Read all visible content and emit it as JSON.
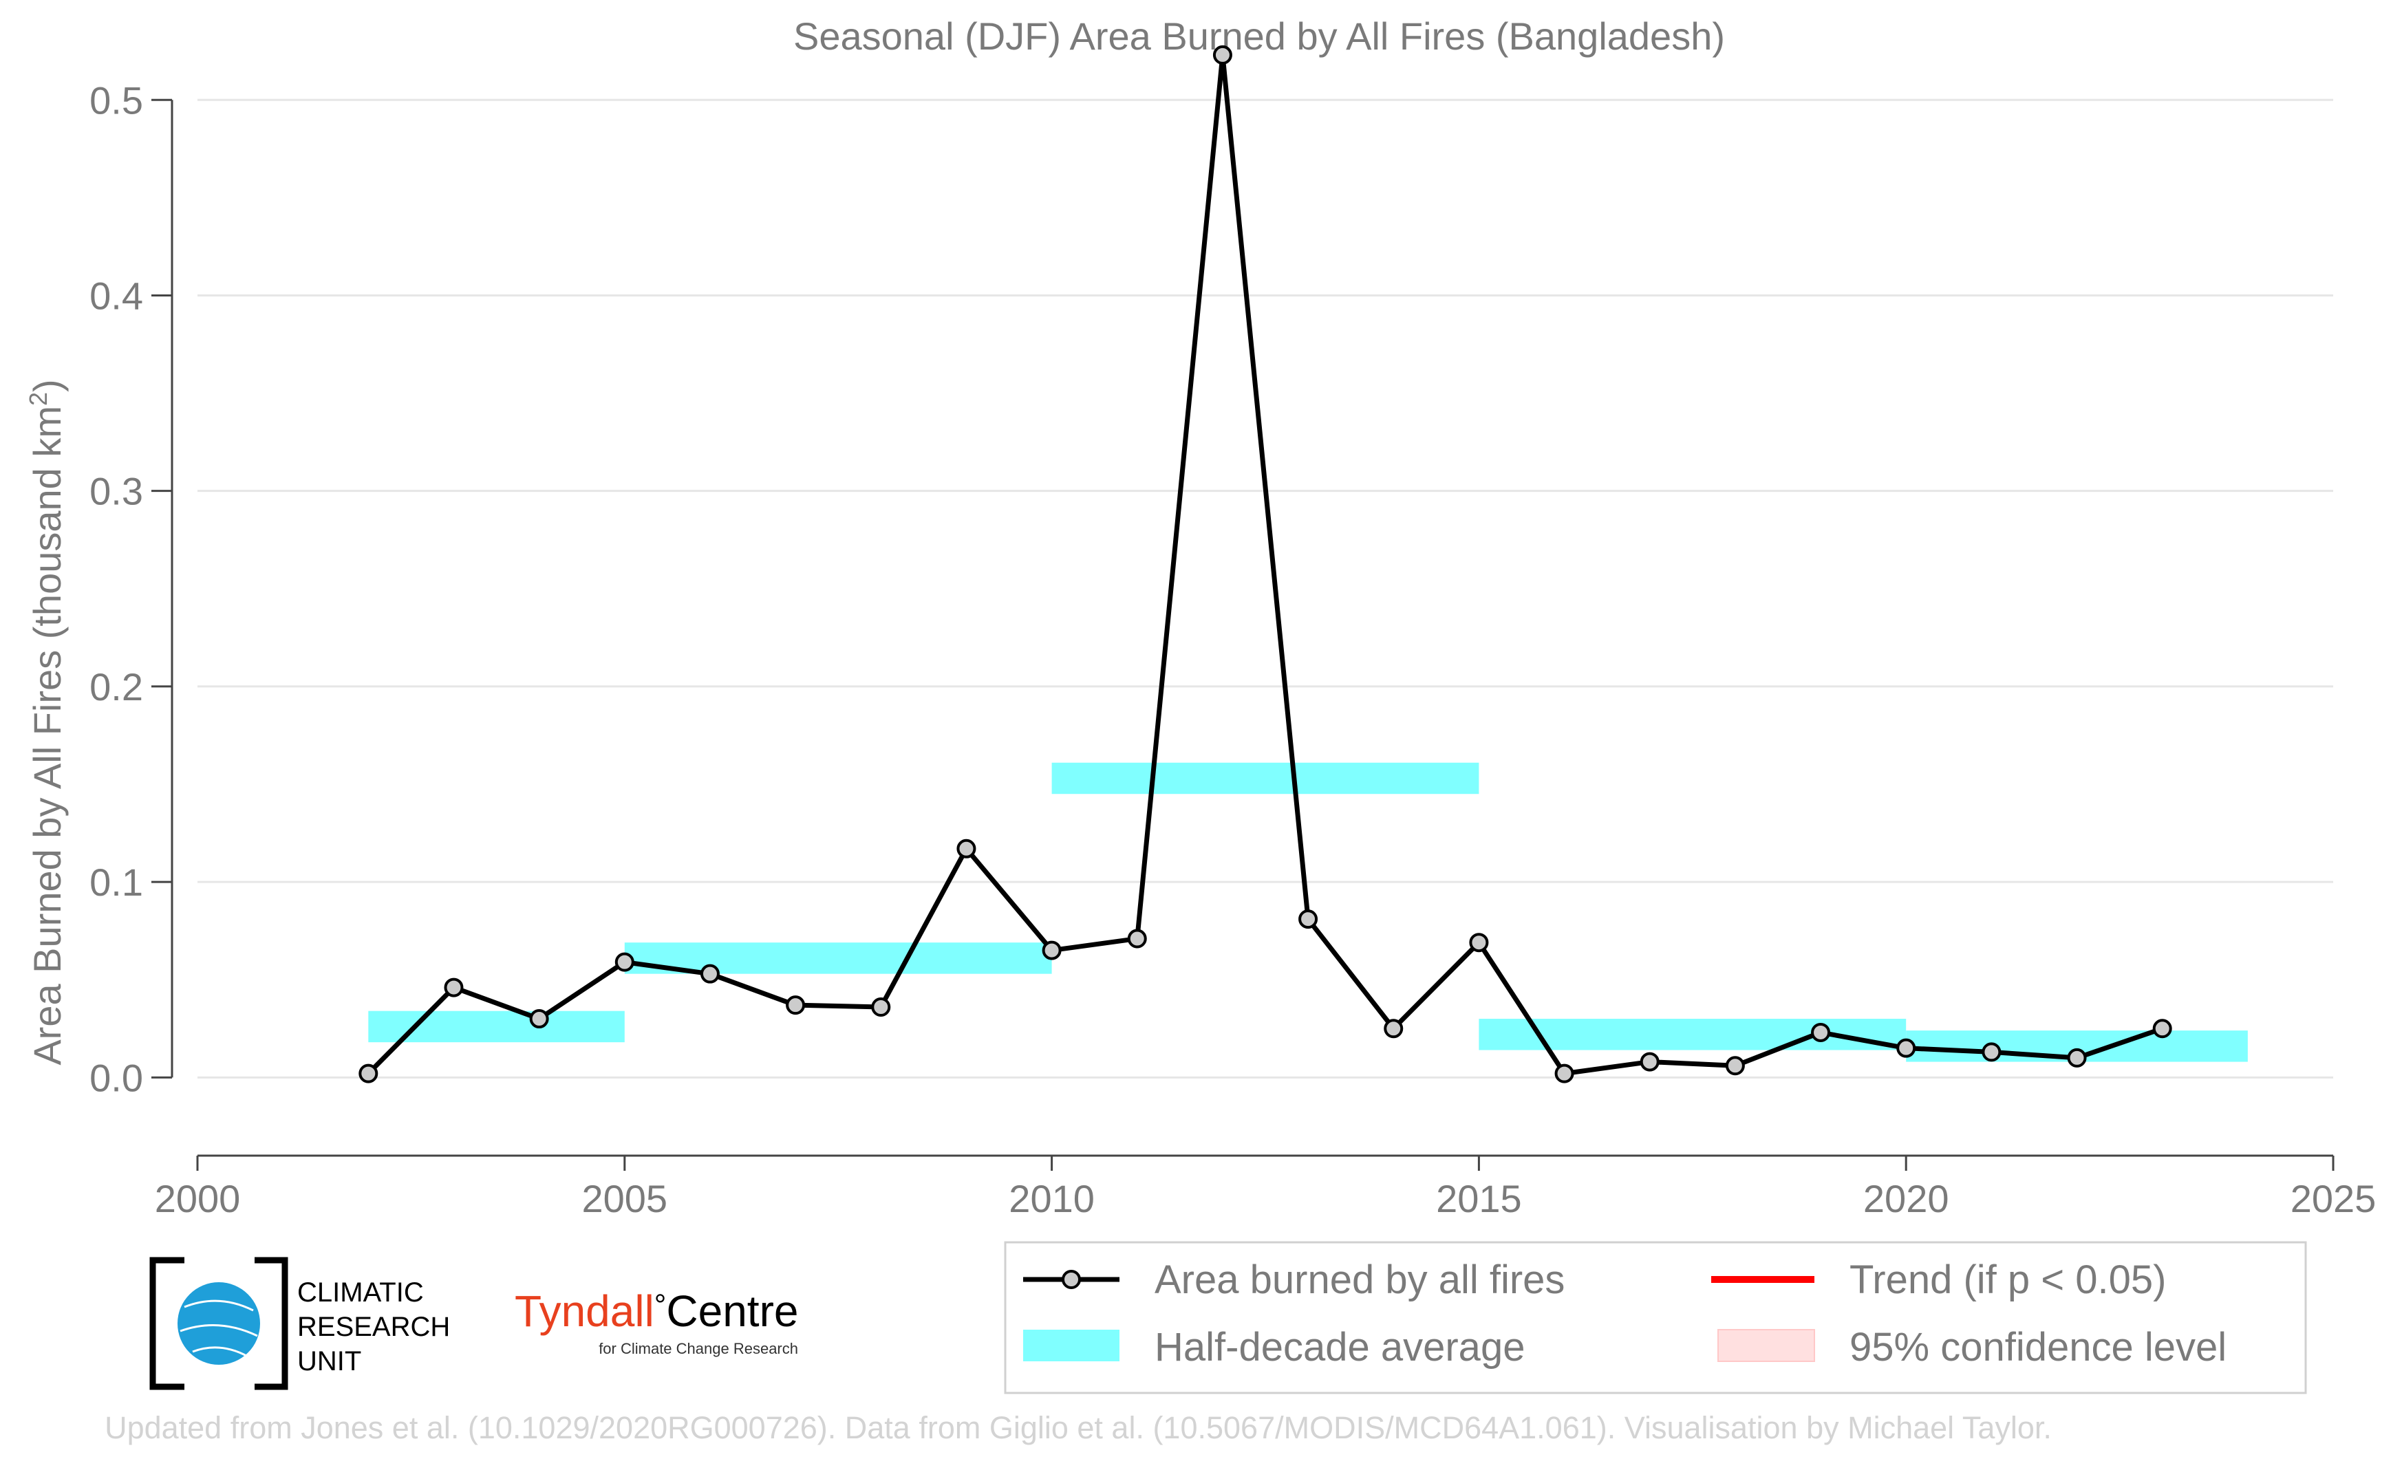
{
  "chart_data": {
    "type": "line",
    "title": "Seasonal (DJF) Area Burned by All Fires (Bangladesh)",
    "ylabel_prefix": "Area Burned by All Fires (thousand km",
    "ylabel_sup": "2",
    "ylabel_suffix": ")",
    "xlabel": "",
    "xlim": [
      2000,
      2025
    ],
    "ylim": [
      -0.04,
      0.53
    ],
    "x_ticks": [
      2000,
      2005,
      2010,
      2015,
      2020,
      2025
    ],
    "x_tick_labels": [
      "2000",
      "2005",
      "2010",
      "2015",
      "2020",
      "2025"
    ],
    "y_ticks": [
      0.0,
      0.1,
      0.2,
      0.3,
      0.4,
      0.5
    ],
    "y_tick_labels": [
      "0.0",
      "0.1",
      "0.2",
      "0.3",
      "0.4",
      "0.5"
    ],
    "grid": "horizontal",
    "legend_position": "bottom-right",
    "series": [
      {
        "name": "Area burned by all fires",
        "color": "#000000",
        "marker_fill": "#cccccc",
        "x": [
          2002,
          2003,
          2004,
          2005,
          2006,
          2007,
          2008,
          2009,
          2010,
          2011,
          2012,
          2013,
          2014,
          2015,
          2016,
          2017,
          2018,
          2019,
          2020,
          2021,
          2022,
          2023
        ],
        "y": [
          0.002,
          0.046,
          0.03,
          0.059,
          0.053,
          0.037,
          0.036,
          0.117,
          0.065,
          0.071,
          0.523,
          0.081,
          0.025,
          0.069,
          0.002,
          0.008,
          0.006,
          0.023,
          0.015,
          0.013,
          0.01,
          0.025
        ]
      }
    ],
    "half_decade_average": {
      "name": "Half-decade average",
      "color": "#80ffff",
      "segments": [
        {
          "x_start": 2002,
          "x_end": 2005,
          "y": 0.026
        },
        {
          "x_start": 2005,
          "x_end": 2010,
          "y": 0.061
        },
        {
          "x_start": 2010,
          "x_end": 2015,
          "y": 0.153
        },
        {
          "x_start": 2015,
          "x_end": 2020,
          "y": 0.022
        },
        {
          "x_start": 2020,
          "x_end": 2024,
          "y": 0.016
        }
      ]
    },
    "legend": [
      {
        "label": "Area burned by all fires",
        "kind": "line-marker",
        "color": "#000000"
      },
      {
        "label": "Trend (if p < 0.05)",
        "kind": "line",
        "color": "#ff0000"
      },
      {
        "label": "Half-decade average",
        "kind": "band",
        "color": "#80ffff"
      },
      {
        "label": "95% confidence level",
        "kind": "band",
        "color": "#ffe0e0"
      }
    ]
  },
  "logos": {
    "cru_line1": "CLIMATIC",
    "cru_line2": "RESEARCH",
    "cru_line3": "UNIT",
    "tyndall_main": "Tyndall",
    "tyndall_degree": "°",
    "tyndall_centre": "Centre",
    "tyndall_sub": "for Climate Change Research"
  },
  "credit": "Updated from Jones et al. (10.1029/2020RG000726). Data from Giglio et al. (10.5067/MODIS/MCD64A1.061). Visualisation by Michael Taylor."
}
